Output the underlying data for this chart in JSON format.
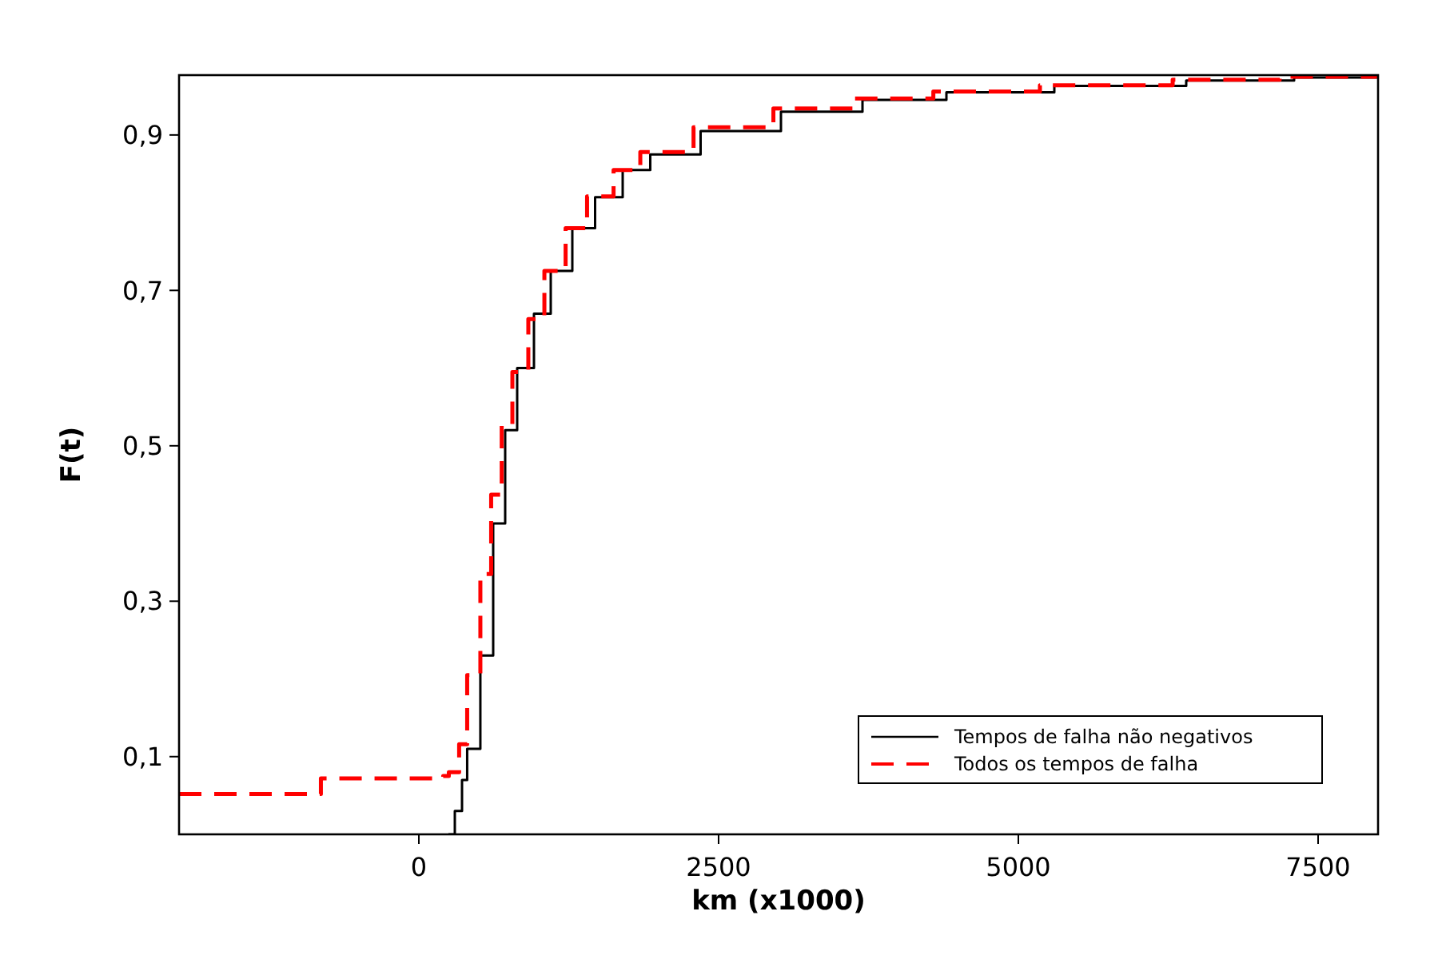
{
  "chart_data": {
    "type": "step",
    "xlabel": "km (x1000)",
    "ylabel": "F(t)",
    "xlim": [
      -2000,
      8000
    ],
    "ylim": [
      0,
      0.977
    ],
    "xticks": [
      0,
      2500,
      5000,
      7500
    ],
    "yticks": [
      {
        "value": 0.1,
        "label": "0,1"
      },
      {
        "value": 0.3,
        "label": "0,3"
      },
      {
        "value": 0.5,
        "label": "0,5"
      },
      {
        "value": 0.7,
        "label": "0,7"
      },
      {
        "value": 0.9,
        "label": "0,9"
      }
    ],
    "grid": false,
    "legend": "bottom right",
    "series": [
      {
        "name": "Tempos de falha não negativos",
        "color": "#000000",
        "line_style": "solid",
        "x": [
          247,
          300,
          360,
          403,
          513,
          620,
          720,
          820,
          960,
          1100,
          1280,
          1470,
          1700,
          1930,
          2350,
          3020,
          3700,
          4400,
          5300,
          6400,
          7300,
          8000
        ],
        "values": [
          0,
          0.03,
          0.07,
          0.11,
          0.23,
          0.4,
          0.52,
          0.6,
          0.67,
          0.725,
          0.78,
          0.82,
          0.855,
          0.875,
          0.905,
          0.93,
          0.945,
          0.955,
          0.963,
          0.97,
          0.974,
          0.976
        ]
      },
      {
        "name": "Todos os tempos de falha",
        "color": "#ff0000",
        "line_style": "dashed",
        "x": [
          -2000,
          -817,
          203,
          250,
          336,
          403,
          513,
          603,
          691,
          780,
          913,
          1047,
          1224,
          1403,
          1624,
          1847,
          2291,
          2957,
          3624,
          4291,
          5180,
          6287,
          7180,
          7980
        ],
        "values": [
          0.052,
          0.072,
          0.075,
          0.08,
          0.116,
          0.205,
          0.335,
          0.437,
          0.526,
          0.595,
          0.663,
          0.725,
          0.78,
          0.821,
          0.855,
          0.878,
          0.91,
          0.934,
          0.947,
          0.956,
          0.964,
          0.971,
          0.975,
          0.976
        ]
      }
    ]
  }
}
